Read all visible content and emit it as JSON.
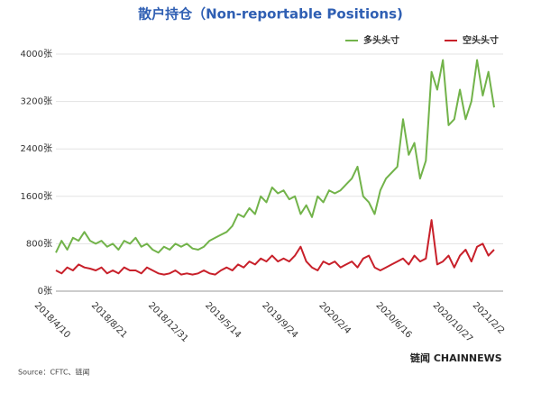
{
  "chart_data": {
    "type": "line",
    "title": "散户持仓（Non-reportable Positions)",
    "source": "Source：CFTC、链闻",
    "logo": "链闻 CHAINNEWS",
    "categories": [
      "2018/4/10",
      null,
      null,
      null,
      null,
      null,
      null,
      null,
      null,
      null,
      "2018/8/21",
      null,
      null,
      null,
      null,
      null,
      null,
      null,
      null,
      null,
      "2018/12/31",
      null,
      null,
      null,
      null,
      null,
      null,
      null,
      null,
      null,
      "2019/5/14",
      null,
      null,
      null,
      null,
      null,
      null,
      null,
      null,
      null,
      "2019/9/24",
      null,
      null,
      null,
      null,
      null,
      null,
      null,
      null,
      null,
      "2020/2/4",
      null,
      null,
      null,
      null,
      null,
      null,
      null,
      null,
      null,
      "2020/6/16",
      null,
      null,
      null,
      null,
      null,
      null,
      null,
      null,
      null,
      "2020/10/27",
      null,
      null,
      null,
      null,
      null,
      null,
      "2021/2/2"
    ],
    "series": [
      {
        "name": "多头头寸",
        "color": "#72b34a",
        "values": [
          650,
          850,
          700,
          900,
          850,
          1000,
          850,
          800,
          850,
          750,
          800,
          700,
          850,
          800,
          900,
          750,
          800,
          700,
          650,
          750,
          700,
          800,
          750,
          800,
          720,
          700,
          750,
          850,
          900,
          950,
          1000,
          1100,
          1300,
          1250,
          1400,
          1300,
          1600,
          1500,
          1750,
          1650,
          1700,
          1550,
          1600,
          1300,
          1450,
          1250,
          1600,
          1500,
          1700,
          1650,
          1700,
          1800,
          1900,
          2100,
          1600,
          1500,
          1300,
          1700,
          1900,
          2000,
          2100,
          2900,
          2300,
          2500,
          1900,
          2200,
          3700,
          3400,
          3900,
          2800,
          2900,
          3400,
          2900,
          3200,
          3900,
          3300,
          3700,
          3100
        ]
      },
      {
        "name": "空头头寸",
        "color": "#c8202a",
        "values": [
          350,
          300,
          400,
          350,
          450,
          400,
          380,
          350,
          400,
          300,
          350,
          300,
          400,
          350,
          350,
          300,
          400,
          350,
          300,
          280,
          300,
          350,
          280,
          300,
          280,
          300,
          350,
          300,
          280,
          350,
          400,
          350,
          450,
          400,
          500,
          450,
          550,
          500,
          600,
          500,
          550,
          500,
          600,
          750,
          500,
          400,
          350,
          500,
          450,
          500,
          400,
          450,
          500,
          400,
          550,
          600,
          400,
          350,
          400,
          450,
          500,
          550,
          450,
          600,
          500,
          550,
          1200,
          450,
          500,
          600,
          400,
          600,
          700,
          500,
          750,
          800,
          600,
          700
        ]
      }
    ],
    "ylim": [
      0,
      4000
    ],
    "yticks": [
      {
        "value": 0,
        "label": "0张"
      },
      {
        "value": 800,
        "label": "800张"
      },
      {
        "value": 1600,
        "label": "1600张"
      },
      {
        "value": 2400,
        "label": "2400张"
      },
      {
        "value": 3200,
        "label": "3200张"
      },
      {
        "value": 4000,
        "label": "4000张"
      }
    ],
    "grid": true,
    "legend": "top-right"
  }
}
